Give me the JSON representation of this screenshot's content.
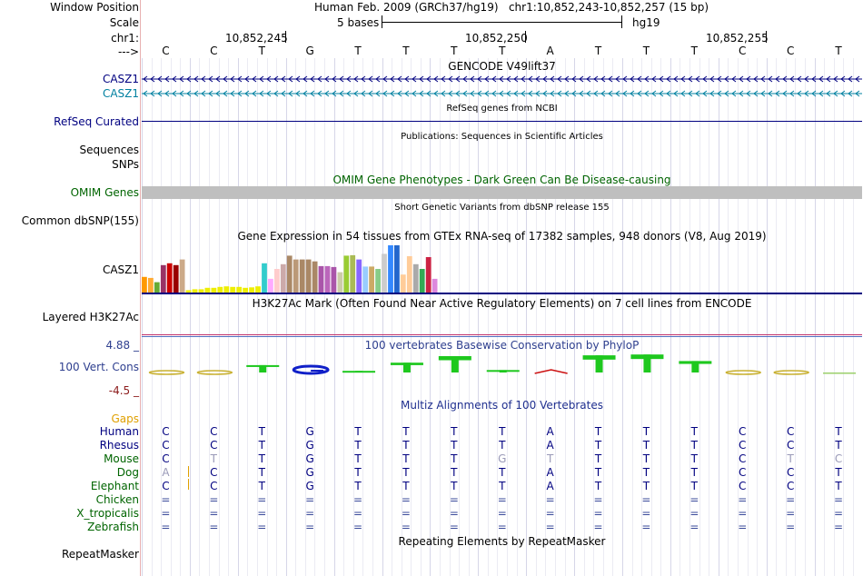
{
  "header": {
    "window_position_label": "Window Position",
    "window_position_value": "Human Feb. 2009 (GRCh37/hg19)   chr1:10,852,243-10,852,257 (15 bp)",
    "scale_label": "Scale",
    "scale_value": "5 bases",
    "scale_assembly": "hg19",
    "chrom_label": "chr1:",
    "strand_label": "--->",
    "coord_ticks": [
      "10,852,245",
      "10,852,250",
      "10,852,255"
    ],
    "bases": [
      "C",
      "C",
      "T",
      "G",
      "T",
      "T",
      "T",
      "T",
      "A",
      "T",
      "T",
      "T",
      "C",
      "C",
      "T"
    ]
  },
  "tracks": {
    "gencode": {
      "title": "GENCODE V49lift37",
      "row1_label": "CASZ1",
      "row2_label": "CASZ1"
    },
    "refseq": {
      "title": "RefSeq genes from NCBI",
      "label": "RefSeq Curated"
    },
    "publications": {
      "title": "Publications: Sequences in Scientific Articles",
      "label1": "Sequences",
      "label2": "SNPs"
    },
    "omim": {
      "title": "OMIM Gene Phenotypes - Dark Green Can Be Disease-causing",
      "label": "OMIM Genes"
    },
    "dbsnp": {
      "title": "Short Genetic Variants from dbSNP release 155",
      "label": "Common dbSNP(155)"
    },
    "gtex": {
      "title": "Gene Expression in 54 tissues from GTEx RNA-seq of 17382 samples, 948 donors (V8, Aug 2019)",
      "label": "CASZ1",
      "bars": [
        {
          "h": 0.33,
          "c": "#ff9900"
        },
        {
          "h": 0.31,
          "c": "#ffaa33"
        },
        {
          "h": 0.22,
          "c": "#66aa33"
        },
        {
          "h": 0.58,
          "c": "#993366"
        },
        {
          "h": 0.62,
          "c": "#cc0000"
        },
        {
          "h": 0.58,
          "c": "#990000"
        },
        {
          "h": 0.7,
          "c": "#ccaa88"
        },
        {
          "h": 0.05,
          "c": "#eeee00"
        },
        {
          "h": 0.07,
          "c": "#eeee00"
        },
        {
          "h": 0.07,
          "c": "#eeee00"
        },
        {
          "h": 0.1,
          "c": "#eeee00"
        },
        {
          "h": 0.1,
          "c": "#eeee00"
        },
        {
          "h": 0.12,
          "c": "#eeee00"
        },
        {
          "h": 0.13,
          "c": "#eeee00"
        },
        {
          "h": 0.12,
          "c": "#eeee00"
        },
        {
          "h": 0.12,
          "c": "#eeee00"
        },
        {
          "h": 0.1,
          "c": "#eeee00"
        },
        {
          "h": 0.11,
          "c": "#eeee00"
        },
        {
          "h": 0.13,
          "c": "#eeee00"
        },
        {
          "h": 0.62,
          "c": "#33cccc"
        },
        {
          "h": 0.29,
          "c": "#ffaaff"
        },
        {
          "h": 0.5,
          "c": "#ffcccc"
        },
        {
          "h": 0.6,
          "c": "#ccaaaa"
        },
        {
          "h": 0.78,
          "c": "#aa8866"
        },
        {
          "h": 0.7,
          "c": "#bb9977"
        },
        {
          "h": 0.7,
          "c": "#aa8866"
        },
        {
          "h": 0.7,
          "c": "#aa8866"
        },
        {
          "h": 0.66,
          "c": "#aa8866"
        },
        {
          "h": 0.56,
          "c": "#aa55aa"
        },
        {
          "h": 0.56,
          "c": "#bb66bb"
        },
        {
          "h": 0.54,
          "c": "#aa55aa"
        },
        {
          "h": 0.43,
          "c": "#ccccaa"
        },
        {
          "h": 0.78,
          "c": "#99cc33"
        },
        {
          "h": 0.79,
          "c": "#aabb55"
        },
        {
          "h": 0.7,
          "c": "#8866ff"
        },
        {
          "h": 0.55,
          "c": "#99ccff"
        },
        {
          "h": 0.55,
          "c": "#ccaa66"
        },
        {
          "h": 0.5,
          "c": "#88cc88"
        },
        {
          "h": 0.82,
          "c": "#cccccc"
        },
        {
          "h": 1.0,
          "c": "#3388ff"
        },
        {
          "h": 1.0,
          "c": "#2266cc"
        },
        {
          "h": 0.38,
          "c": "#ffcc99"
        },
        {
          "h": 0.77,
          "c": "#ffcc99"
        },
        {
          "h": 0.6,
          "c": "#aaaaaa"
        },
        {
          "h": 0.5,
          "c": "#33aa55"
        },
        {
          "h": 0.75,
          "c": "#cc2244"
        },
        {
          "h": 0.29,
          "c": "#dd88dd"
        }
      ]
    },
    "h3k27ac": {
      "title": "H3K27Ac Mark (Often Found Near Active Regulatory Elements) on 7 cell lines from ENCODE",
      "label": "Layered H3K27Ac"
    },
    "phylop": {
      "title": "100 vertebrates Basewise Conservation by PhyloP",
      "label": "100 Vert. Cons",
      "max_label": "4.88 _",
      "min_label": "-4.5 _",
      "scores": [
        0.1,
        0.4,
        0.9,
        -0.2,
        0.2,
        1.2,
        2.0,
        0.3,
        -0.4,
        2.1,
        2.2,
        1.4,
        -0.3,
        -0.3,
        0
      ]
    },
    "multiz": {
      "title": "Multiz Alignments of 100 Vertebrates",
      "gaps_label": "Gaps",
      "species": [
        {
          "name": "Human",
          "bases": [
            "C",
            "C",
            "T",
            "G",
            "T",
            "T",
            "T",
            "T",
            "A",
            "T",
            "T",
            "T",
            "C",
            "C",
            "T"
          ]
        },
        {
          "name": "Rhesus",
          "bases": [
            "C",
            "C",
            "T",
            "G",
            "T",
            "T",
            "T",
            "T",
            "A",
            "T",
            "T",
            "T",
            "C",
            "C",
            "T"
          ]
        },
        {
          "name": "Mouse",
          "bases": [
            "C",
            "T",
            "T",
            "G",
            "T",
            "T",
            "T",
            "G",
            "T",
            "T",
            "T",
            "T",
            "C",
            "T",
            "C"
          ]
        },
        {
          "name": "Dog",
          "bases": [
            "A",
            "C",
            "T",
            "G",
            "T",
            "T",
            "T",
            "T",
            "A",
            "T",
            "T",
            "T",
            "C",
            "C",
            "T"
          ]
        },
        {
          "name": "Elephant",
          "bases": [
            "C",
            "C",
            "T",
            "G",
            "T",
            "T",
            "T",
            "T",
            "A",
            "T",
            "T",
            "T",
            "C",
            "C",
            "T"
          ]
        },
        {
          "name": "Chicken",
          "bases": [
            "=",
            "=",
            "=",
            "=",
            "=",
            "=",
            "=",
            "=",
            "=",
            "=",
            "=",
            "=",
            "=",
            "=",
            "="
          ]
        },
        {
          "name": "X_tropicalis",
          "bases": [
            "=",
            "=",
            "=",
            "=",
            "=",
            "=",
            "=",
            "=",
            "=",
            "=",
            "=",
            "=",
            "=",
            "=",
            "="
          ]
        },
        {
          "name": "Zebrafish",
          "bases": [
            "=",
            "=",
            "=",
            "=",
            "=",
            "=",
            "=",
            "=",
            "=",
            "=",
            "=",
            "=",
            "=",
            "=",
            "="
          ]
        }
      ]
    },
    "repeatmasker": {
      "title": "Repeating Elements by RepeatMasker",
      "label": "RepeatMasker"
    }
  },
  "colors": {
    "navy": "#000080",
    "teal": "#0080a0",
    "omim_green": "#006400",
    "gray_bar": "#bfbfbf",
    "phylop_blue": "#2e3f8f",
    "phylop_red": "#8b1a1a",
    "gaps_orange": "#e0a000",
    "multiz_title": "#1f2f8f",
    "h3k_line": "#c0306b"
  }
}
